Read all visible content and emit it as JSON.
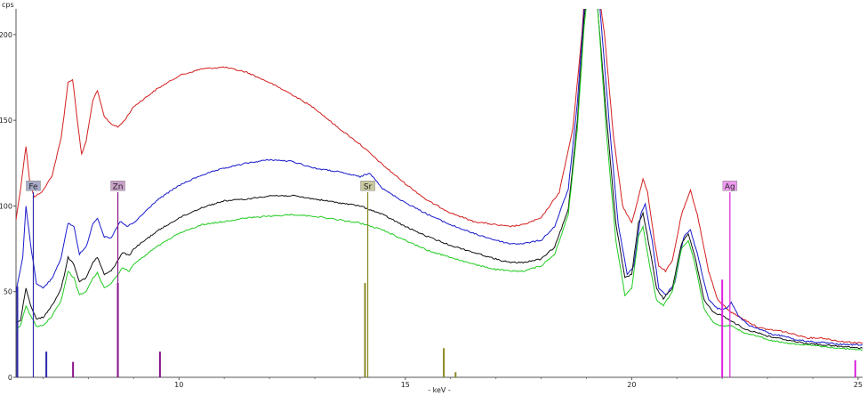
{
  "chart_data": {
    "type": "line",
    "xlabel": "- keV -",
    "ylabel": "cps",
    "xlim": [
      6.4,
      25.1
    ],
    "ylim": [
      0,
      215
    ],
    "xticks": [
      10,
      15,
      20,
      25
    ],
    "yticks": [
      0,
      50,
      100,
      150,
      200
    ],
    "grid": false,
    "series": [
      {
        "color": "#d42020",
        "points": [
          [
            6.4,
            92
          ],
          [
            6.5,
            110
          ],
          [
            6.62,
            135
          ],
          [
            6.7,
            115
          ],
          [
            6.8,
            105
          ],
          [
            7.0,
            109
          ],
          [
            7.2,
            118
          ],
          [
            7.4,
            140
          ],
          [
            7.55,
            172
          ],
          [
            7.65,
            174
          ],
          [
            7.8,
            140
          ],
          [
            7.85,
            130
          ],
          [
            7.95,
            138
          ],
          [
            8.1,
            162
          ],
          [
            8.2,
            167
          ],
          [
            8.35,
            152
          ],
          [
            8.5,
            148
          ],
          [
            8.65,
            146
          ],
          [
            8.8,
            150
          ],
          [
            9.0,
            158
          ],
          [
            9.5,
            168
          ],
          [
            10.0,
            176
          ],
          [
            10.5,
            180
          ],
          [
            11.0,
            181
          ],
          [
            11.5,
            178
          ],
          [
            12.0,
            172
          ],
          [
            12.5,
            165
          ],
          [
            13.0,
            157
          ],
          [
            13.5,
            146
          ],
          [
            14.0,
            136
          ],
          [
            14.5,
            124
          ],
          [
            15.0,
            113
          ],
          [
            15.5,
            103
          ],
          [
            16.0,
            96
          ],
          [
            16.5,
            91
          ],
          [
            17.0,
            89
          ],
          [
            17.3,
            88
          ],
          [
            17.6,
            89
          ],
          [
            18.0,
            93
          ],
          [
            18.4,
            108
          ],
          [
            18.7,
            145
          ],
          [
            18.9,
            200
          ],
          [
            19.0,
            240
          ],
          [
            19.2,
            240
          ],
          [
            19.4,
            200
          ],
          [
            19.6,
            140
          ],
          [
            19.8,
            100
          ],
          [
            20.0,
            90
          ],
          [
            20.1,
            100
          ],
          [
            20.25,
            116
          ],
          [
            20.35,
            108
          ],
          [
            20.5,
            80
          ],
          [
            20.6,
            65
          ],
          [
            20.75,
            62
          ],
          [
            20.9,
            68
          ],
          [
            21.1,
            95
          ],
          [
            21.3,
            109
          ],
          [
            21.45,
            95
          ],
          [
            21.7,
            62
          ],
          [
            21.9,
            45
          ],
          [
            22.2,
            38
          ],
          [
            22.6,
            32
          ],
          [
            22.8,
            29
          ],
          [
            23.0,
            28
          ],
          [
            23.3,
            27
          ],
          [
            23.6,
            25
          ],
          [
            23.9,
            23
          ],
          [
            24.2,
            23
          ],
          [
            24.6,
            21
          ],
          [
            25.1,
            20
          ]
        ]
      },
      {
        "color": "#1a1acc",
        "points": [
          [
            6.4,
            50
          ],
          [
            6.55,
            70
          ],
          [
            6.62,
            100
          ],
          [
            6.72,
            78
          ],
          [
            6.85,
            55
          ],
          [
            7.0,
            52
          ],
          [
            7.2,
            58
          ],
          [
            7.4,
            70
          ],
          [
            7.55,
            90
          ],
          [
            7.68,
            88
          ],
          [
            7.8,
            72
          ],
          [
            7.95,
            76
          ],
          [
            8.1,
            90
          ],
          [
            8.2,
            93
          ],
          [
            8.35,
            82
          ],
          [
            8.5,
            81
          ],
          [
            8.6,
            86
          ],
          [
            8.7,
            91
          ],
          [
            8.85,
            88
          ],
          [
            9.0,
            90
          ],
          [
            9.5,
            103
          ],
          [
            10.0,
            112
          ],
          [
            10.5,
            118
          ],
          [
            11.0,
            122
          ],
          [
            11.5,
            125
          ],
          [
            12.0,
            127
          ],
          [
            12.5,
            126
          ],
          [
            13.0,
            122
          ],
          [
            13.5,
            120
          ],
          [
            14.0,
            117
          ],
          [
            14.2,
            119
          ],
          [
            14.3,
            117
          ],
          [
            14.5,
            110
          ],
          [
            15.0,
            102
          ],
          [
            15.5,
            95
          ],
          [
            16.0,
            89
          ],
          [
            16.5,
            84
          ],
          [
            17.0,
            80
          ],
          [
            17.3,
            78
          ],
          [
            17.6,
            78
          ],
          [
            18.0,
            80
          ],
          [
            18.3,
            88
          ],
          [
            18.6,
            110
          ],
          [
            18.8,
            160
          ],
          [
            18.95,
            215
          ],
          [
            19.15,
            240
          ],
          [
            19.3,
            215
          ],
          [
            19.5,
            150
          ],
          [
            19.7,
            90
          ],
          [
            19.9,
            60
          ],
          [
            20.05,
            65
          ],
          [
            20.2,
            95
          ],
          [
            20.3,
            101
          ],
          [
            20.45,
            80
          ],
          [
            20.6,
            52
          ],
          [
            20.75,
            48
          ],
          [
            20.95,
            55
          ],
          [
            21.15,
            82
          ],
          [
            21.3,
            86
          ],
          [
            21.45,
            72
          ],
          [
            21.7,
            45
          ],
          [
            21.9,
            40
          ],
          [
            22.1,
            40
          ],
          [
            22.2,
            44
          ],
          [
            22.35,
            36
          ],
          [
            22.6,
            30
          ],
          [
            22.85,
            28
          ],
          [
            23.1,
            25
          ],
          [
            23.4,
            24
          ],
          [
            23.6,
            22
          ],
          [
            23.9,
            21
          ],
          [
            24.3,
            20
          ],
          [
            24.7,
            19
          ],
          [
            25.1,
            19
          ]
        ]
      },
      {
        "color": "#111111",
        "points": [
          [
            6.4,
            32
          ],
          [
            6.5,
            33
          ],
          [
            6.62,
            52
          ],
          [
            6.72,
            42
          ],
          [
            6.85,
            34
          ],
          [
            7.0,
            35
          ],
          [
            7.2,
            42
          ],
          [
            7.4,
            52
          ],
          [
            7.55,
            70
          ],
          [
            7.68,
            66
          ],
          [
            7.8,
            56
          ],
          [
            7.95,
            58
          ],
          [
            8.1,
            67
          ],
          [
            8.2,
            70
          ],
          [
            8.35,
            60
          ],
          [
            8.5,
            62
          ],
          [
            8.65,
            68
          ],
          [
            8.75,
            73
          ],
          [
            8.9,
            71
          ],
          [
            9.0,
            75
          ],
          [
            9.5,
            85
          ],
          [
            10.0,
            93
          ],
          [
            10.5,
            99
          ],
          [
            11.0,
            103
          ],
          [
            11.5,
            104
          ],
          [
            12.0,
            106
          ],
          [
            12.5,
            106
          ],
          [
            13.0,
            104
          ],
          [
            13.5,
            102
          ],
          [
            14.0,
            100
          ],
          [
            14.5,
            95
          ],
          [
            15.0,
            88
          ],
          [
            15.5,
            82
          ],
          [
            16.0,
            77
          ],
          [
            16.5,
            73
          ],
          [
            17.0,
            69
          ],
          [
            17.3,
            67
          ],
          [
            17.6,
            67
          ],
          [
            18.0,
            69
          ],
          [
            18.3,
            76
          ],
          [
            18.6,
            98
          ],
          [
            18.8,
            150
          ],
          [
            18.95,
            210
          ],
          [
            19.1,
            240
          ],
          [
            19.25,
            215
          ],
          [
            19.45,
            150
          ],
          [
            19.65,
            90
          ],
          [
            19.85,
            58
          ],
          [
            20.0,
            60
          ],
          [
            20.15,
            90
          ],
          [
            20.25,
            96
          ],
          [
            20.4,
            75
          ],
          [
            20.55,
            52
          ],
          [
            20.7,
            46
          ],
          [
            20.9,
            52
          ],
          [
            21.1,
            78
          ],
          [
            21.25,
            84
          ],
          [
            21.4,
            70
          ],
          [
            21.6,
            45
          ],
          [
            21.8,
            38
          ],
          [
            22.0,
            36
          ],
          [
            22.2,
            33
          ],
          [
            22.5,
            28
          ],
          [
            22.8,
            26
          ],
          [
            23.0,
            24
          ],
          [
            23.4,
            22
          ],
          [
            23.8,
            20
          ],
          [
            24.2,
            19
          ],
          [
            24.6,
            18
          ],
          [
            25.1,
            17
          ]
        ]
      },
      {
        "color": "#22cc22",
        "points": [
          [
            6.4,
            28
          ],
          [
            6.5,
            30
          ],
          [
            6.62,
            42
          ],
          [
            6.72,
            36
          ],
          [
            6.85,
            30
          ],
          [
            7.0,
            30
          ],
          [
            7.2,
            36
          ],
          [
            7.4,
            45
          ],
          [
            7.55,
            62
          ],
          [
            7.68,
            58
          ],
          [
            7.8,
            48
          ],
          [
            7.95,
            50
          ],
          [
            8.1,
            58
          ],
          [
            8.2,
            61
          ],
          [
            8.35,
            52
          ],
          [
            8.5,
            55
          ],
          [
            8.65,
            60
          ],
          [
            8.75,
            64
          ],
          [
            8.9,
            62
          ],
          [
            9.0,
            66
          ],
          [
            9.5,
            76
          ],
          [
            10.0,
            84
          ],
          [
            10.5,
            89
          ],
          [
            11.0,
            91
          ],
          [
            11.5,
            93
          ],
          [
            12.0,
            94
          ],
          [
            12.5,
            95
          ],
          [
            13.0,
            94
          ],
          [
            13.5,
            92
          ],
          [
            14.0,
            90
          ],
          [
            14.5,
            86
          ],
          [
            15.0,
            80
          ],
          [
            15.5,
            74
          ],
          [
            16.0,
            70
          ],
          [
            16.5,
            66
          ],
          [
            17.0,
            63
          ],
          [
            17.3,
            62
          ],
          [
            17.6,
            62
          ],
          [
            18.0,
            65
          ],
          [
            18.3,
            72
          ],
          [
            18.6,
            95
          ],
          [
            18.8,
            145
          ],
          [
            18.95,
            205
          ],
          [
            19.1,
            240
          ],
          [
            19.25,
            215
          ],
          [
            19.45,
            140
          ],
          [
            19.65,
            80
          ],
          [
            19.85,
            48
          ],
          [
            20.0,
            52
          ],
          [
            20.15,
            82
          ],
          [
            20.25,
            88
          ],
          [
            20.4,
            65
          ],
          [
            20.55,
            45
          ],
          [
            20.7,
            42
          ],
          [
            20.9,
            50
          ],
          [
            21.1,
            75
          ],
          [
            21.25,
            80
          ],
          [
            21.4,
            66
          ],
          [
            21.6,
            40
          ],
          [
            21.8,
            32
          ],
          [
            22.0,
            30
          ],
          [
            22.2,
            30
          ],
          [
            22.5,
            26
          ],
          [
            22.8,
            24
          ],
          [
            23.0,
            22
          ],
          [
            23.4,
            20
          ],
          [
            23.8,
            19
          ],
          [
            24.2,
            18
          ],
          [
            24.6,
            17
          ],
          [
            25.1,
            16
          ]
        ]
      }
    ],
    "element_markers": [
      {
        "label": "Fe",
        "x": 6.4,
        "label_y": 111,
        "line_top": 108,
        "color": "#2a2aaa",
        "label_bg": "#a8aac8"
      },
      {
        "label": "Zn",
        "x": 8.64,
        "label_y": 111,
        "line_top": 108,
        "color": "#881188",
        "label_bg": "#c8a0c8"
      },
      {
        "label": "Sr",
        "x": 14.16,
        "label_y": 111,
        "line_top": 108,
        "color": "#8a8a22",
        "label_bg": "#c8c8a0"
      },
      {
        "label": "Ag",
        "x": 22.16,
        "label_y": 111,
        "line_top": 108,
        "color": "#dd22dd",
        "label_bg": "#ee99ee"
      }
    ],
    "element_lines": [
      {
        "x": 6.4,
        "height": 53,
        "color": "#2a2aaa"
      },
      {
        "x": 7.06,
        "height": 15,
        "color": "#2a2aaa"
      },
      {
        "x": 7.65,
        "height": 9,
        "color": "#881188"
      },
      {
        "x": 8.64,
        "height": 55,
        "color": "#881188"
      },
      {
        "x": 9.57,
        "height": 15,
        "color": "#881188"
      },
      {
        "x": 14.1,
        "height": 55,
        "color": "#8a8a22"
      },
      {
        "x": 15.84,
        "height": 17,
        "color": "#8a8a22"
      },
      {
        "x": 16.1,
        "height": 3,
        "color": "#8a8a22"
      },
      {
        "x": 21.99,
        "height": 57,
        "color": "#dd22dd"
      },
      {
        "x": 24.93,
        "height": 10,
        "color": "#dd22dd"
      }
    ]
  }
}
